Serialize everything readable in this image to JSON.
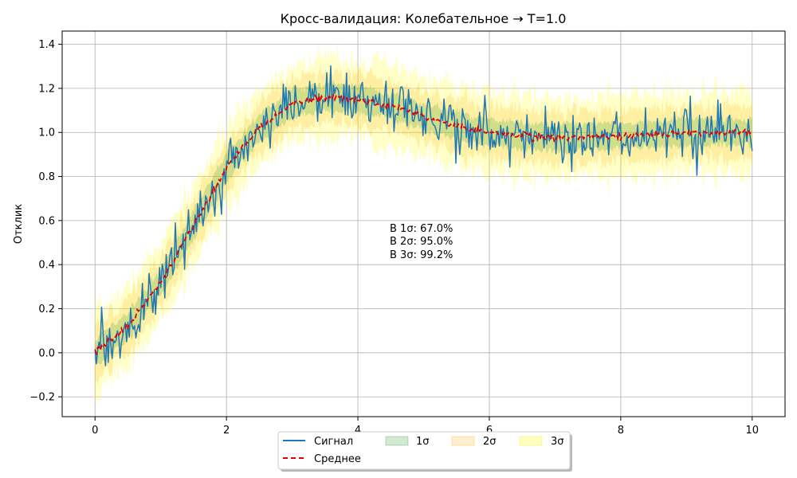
{
  "chart_data": {
    "type": "line",
    "title": "Кросс-валидация: Колебательное → T=1.0",
    "xlabel": "",
    "ylabel": "Отклик",
    "xlim": [
      -0.5,
      10.5
    ],
    "ylim": [
      -0.29,
      1.46
    ],
    "xticks": [
      0,
      2,
      4,
      6,
      8,
      10
    ],
    "xtick_labels": [
      "0",
      "2",
      "4",
      "6",
      "8",
      "10"
    ],
    "yticks": [
      -0.2,
      0.0,
      0.2,
      0.4,
      0.6,
      0.8,
      1.0,
      1.2,
      1.4
    ],
    "ytick_labels": [
      "−0.2",
      "0.0",
      "0.2",
      "0.4",
      "0.6",
      "0.8",
      "1.0",
      "1.2",
      "1.4"
    ],
    "grid": true,
    "legend_position": "bottom-center",
    "mean_curve": {
      "x": [
        0,
        0.5,
        1.0,
        1.5,
        2.0,
        2.5,
        3.0,
        3.5,
        4.0,
        4.5,
        5.0,
        5.5,
        6.0,
        6.5,
        7.0,
        7.5,
        8.0,
        8.5,
        9.0,
        9.5,
        10.0
      ],
      "y": [
        0.0,
        0.12,
        0.32,
        0.58,
        0.84,
        1.02,
        1.13,
        1.16,
        1.15,
        1.12,
        1.07,
        1.03,
        1.0,
        0.985,
        0.975,
        0.98,
        0.985,
        0.99,
        1.0,
        1.0,
        1.0
      ]
    },
    "sigma": {
      "x": [
        0,
        0.5,
        1.0,
        1.5,
        2.0,
        2.5,
        3.0,
        3.5,
        4.0,
        4.5,
        5.0,
        5.5,
        6.0,
        6.5,
        7.0,
        7.5,
        8.0,
        8.5,
        9.0,
        9.5,
        10.0
      ],
      "y": [
        0.06,
        0.06,
        0.06,
        0.06,
        0.06,
        0.06,
        0.06,
        0.06,
        0.06,
        0.06,
        0.06,
        0.06,
        0.06,
        0.06,
        0.06,
        0.06,
        0.06,
        0.06,
        0.06,
        0.06,
        0.06
      ]
    },
    "series": [
      {
        "name": "Сигнал",
        "color": "#1f77b4",
        "style": "solid",
        "points": 500,
        "noise_sigma": 0.06,
        "seed": 7
      },
      {
        "name": "Среднее",
        "color": "#e00000",
        "style": "dashed"
      }
    ],
    "bands": [
      {
        "name": "1σ",
        "k": 1,
        "color": "#2ca02c",
        "opacity": 0.22
      },
      {
        "name": "2σ",
        "k": 2,
        "color": "#ffa500",
        "opacity": 0.18
      },
      {
        "name": "3σ",
        "k": 3,
        "color": "#ffff00",
        "opacity": 0.22
      }
    ],
    "annotations": [
      "В 1σ: 67.0%",
      "В 2σ: 95.0%",
      "В 3σ: 99.2%"
    ]
  }
}
